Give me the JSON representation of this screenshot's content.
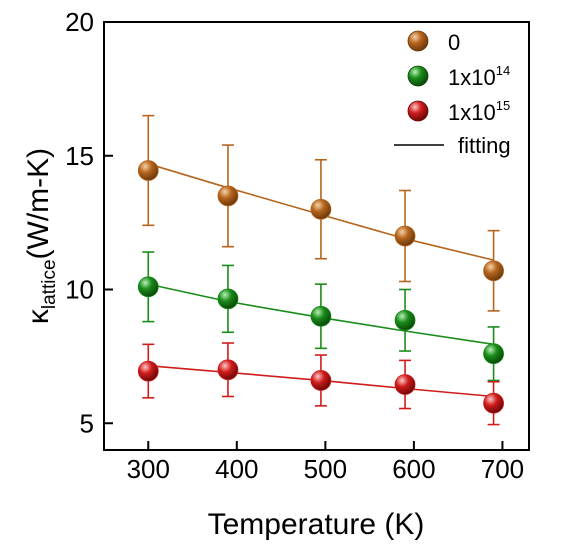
{
  "chart_data": {
    "type": "scatter",
    "xlabel": "Temperature (K)",
    "ylabel": {
      "main": "κ",
      "sub": "lattice",
      "unit": "(W/m-K)"
    },
    "xlim": [
      250,
      730
    ],
    "ylim": [
      4,
      20
    ],
    "xticks": [
      300,
      400,
      500,
      600,
      700
    ],
    "yticks": [
      5,
      10,
      15,
      20
    ],
    "grid": false,
    "legend_position": "top-right",
    "x": [
      300,
      390,
      495,
      590,
      690
    ],
    "series": [
      {
        "name": "0",
        "name_base": "0",
        "name_exp": "",
        "color": "#b5651d",
        "values": [
          14.45,
          13.5,
          13.0,
          12.0,
          10.7
        ],
        "err": [
          2.05,
          1.9,
          1.85,
          1.7,
          1.5
        ],
        "fit": [
          14.7,
          13.8,
          12.8,
          11.9,
          11.1
        ]
      },
      {
        "name": "1x10^14",
        "name_base": "1x10",
        "name_exp": "14",
        "color": "#1a8c1a",
        "values": [
          10.1,
          9.65,
          9.0,
          8.85,
          7.6
        ],
        "err": [
          1.3,
          1.25,
          1.2,
          1.15,
          1.0
        ],
        "fit": [
          10.2,
          9.55,
          8.95,
          8.45,
          7.95
        ]
      },
      {
        "name": "1x10^15",
        "name_base": "1x10",
        "name_exp": "15",
        "color": "#d01c1c",
        "values": [
          6.95,
          7.0,
          6.6,
          6.45,
          5.75
        ],
        "err": [
          1.0,
          1.0,
          0.95,
          0.9,
          0.8
        ],
        "fit": [
          7.15,
          6.9,
          6.6,
          6.3,
          6.0
        ]
      }
    ],
    "fit_legend_label": "fitting"
  }
}
